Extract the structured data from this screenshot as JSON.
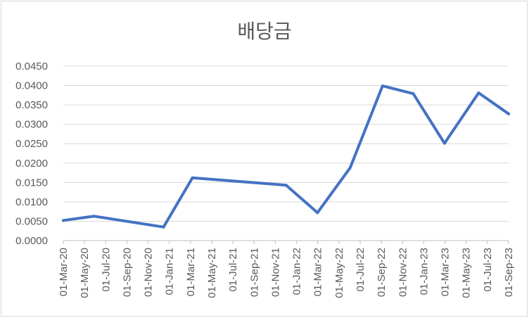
{
  "chart_data": {
    "type": "line",
    "title": "배당금",
    "xlabel": "",
    "ylabel": "",
    "ylim": [
      0,
      0.045
    ],
    "yticks": [
      "0.0000",
      "0.0050",
      "0.0100",
      "0.0150",
      "0.0200",
      "0.0250",
      "0.0300",
      "0.0350",
      "0.0400",
      "0.0450"
    ],
    "xticks": [
      "01-Mar-20",
      "01-May-20",
      "01-Jul-20",
      "01-Sep-20",
      "01-Nov-20",
      "01-Jan-21",
      "01-Mar-21",
      "01-May-21",
      "01-Jul-21",
      "01-Sep-21",
      "01-Nov-21",
      "01-Jan-22",
      "01-Mar-22",
      "01-May-22",
      "01-Jul-22",
      "01-Sep-22",
      "01-Nov-22",
      "01-Jan-23",
      "01-Mar-23",
      "01-May-23",
      "01-Jul-23",
      "01-Sep-23"
    ],
    "grid": true,
    "legend": "none",
    "series": [
      {
        "color": "#4472c4",
        "points": [
          {
            "x": "2020-03-01",
            "y": 0.0052
          },
          {
            "x": "2020-05-28",
            "y": 0.0063
          },
          {
            "x": "2020-12-14",
            "y": 0.0035
          },
          {
            "x": "2021-03-07",
            "y": 0.0162
          },
          {
            "x": "2021-12-01",
            "y": 0.0143
          },
          {
            "x": "2022-03-01",
            "y": 0.0072
          },
          {
            "x": "2022-06-03",
            "y": 0.0188
          },
          {
            "x": "2022-09-04",
            "y": 0.0399
          },
          {
            "x": "2022-12-01",
            "y": 0.0379
          },
          {
            "x": "2023-03-01",
            "y": 0.0251
          },
          {
            "x": "2023-06-07",
            "y": 0.0381
          },
          {
            "x": "2023-09-01",
            "y": 0.0327
          }
        ]
      }
    ]
  }
}
